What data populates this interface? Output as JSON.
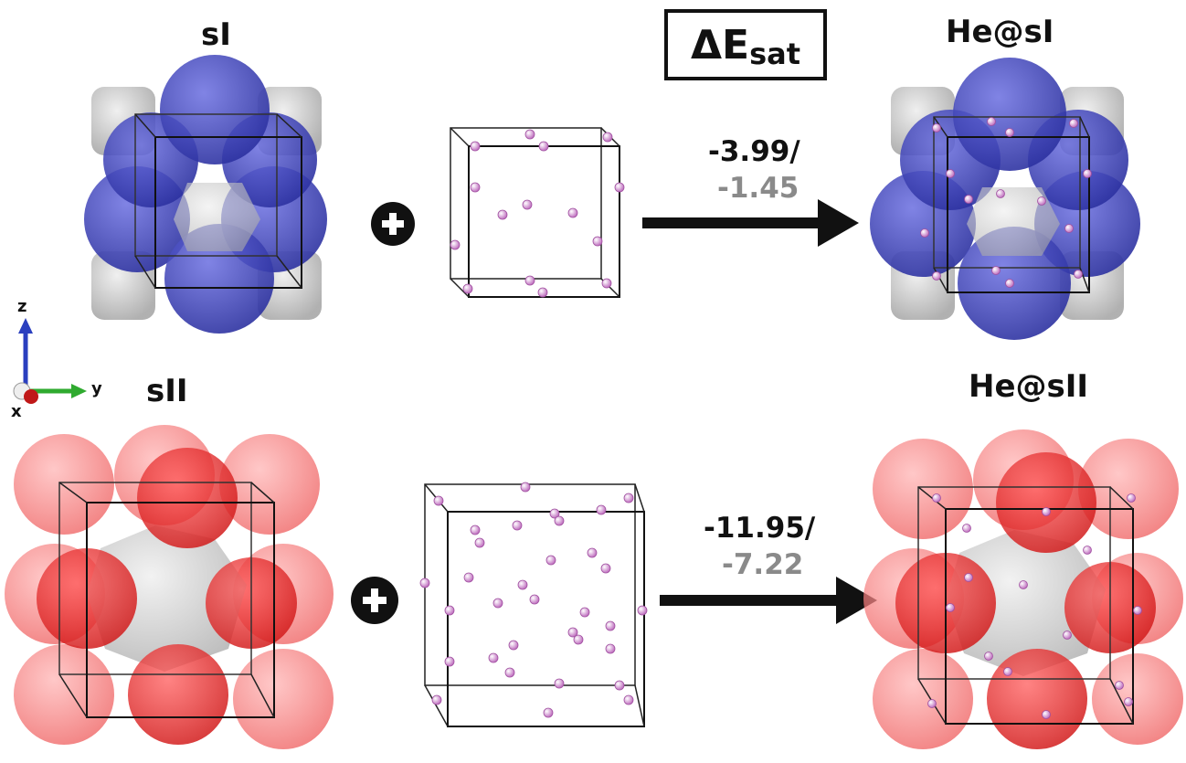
{
  "labels": {
    "sI": "sI",
    "he_sI": "He@sI",
    "sII": "sII",
    "he_sII": "He@sII"
  },
  "legend": {
    "delta": "ΔE",
    "subscript": "sat"
  },
  "reactions": [
    {
      "primary": "-3.99/",
      "secondary": "-1.45"
    },
    {
      "primary": "-11.95/",
      "secondary": "-7.22"
    }
  ],
  "plus_symbol": "+",
  "axes": {
    "z": "z",
    "y": "y",
    "x": "x"
  },
  "colors": {
    "sI_cage": "#3a3fb8",
    "sII_cage": "#e02020",
    "grey_cage": "#b8b8b8",
    "helium_atom": "#d9a0d9",
    "primary_value": "#111111",
    "secondary_value": "#8a8a8a"
  }
}
